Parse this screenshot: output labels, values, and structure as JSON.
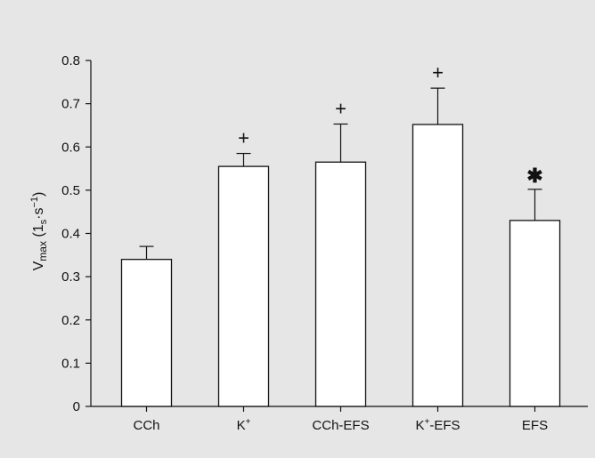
{
  "background_color": "#e6e6e6",
  "bar_fill": "#ffffff",
  "stroke_color": "#111111",
  "chart_data": {
    "type": "bar",
    "title": "",
    "xlabel": "",
    "ylabel": {
      "base": "V",
      "base_sub": "max",
      "open": " (1",
      "unit_sub": "s",
      "middle": "·s",
      "unit_sup": "−1",
      "close": ")"
    },
    "ylim": [
      0,
      0.8
    ],
    "yticks": [
      "0",
      "0.1",
      "0.2",
      "0.3",
      "0.4",
      "0.5",
      "0.6",
      "0.7",
      "0.8"
    ],
    "grid": false,
    "categories": [
      {
        "label": "CCh",
        "sup": "",
        "suffix": ""
      },
      {
        "label": "K",
        "sup": "+",
        "suffix": ""
      },
      {
        "label": "CCh-EFS",
        "sup": "",
        "suffix": ""
      },
      {
        "label": "K",
        "sup": "+",
        "suffix": "-EFS"
      },
      {
        "label": "EFS",
        "sup": "",
        "suffix": ""
      }
    ],
    "values": [
      0.34,
      0.555,
      0.565,
      0.652,
      0.43
    ],
    "errors": [
      0.03,
      0.03,
      0.088,
      0.084,
      0.072
    ],
    "annotations": [
      "",
      "+",
      "+",
      "+",
      "✱"
    ]
  }
}
